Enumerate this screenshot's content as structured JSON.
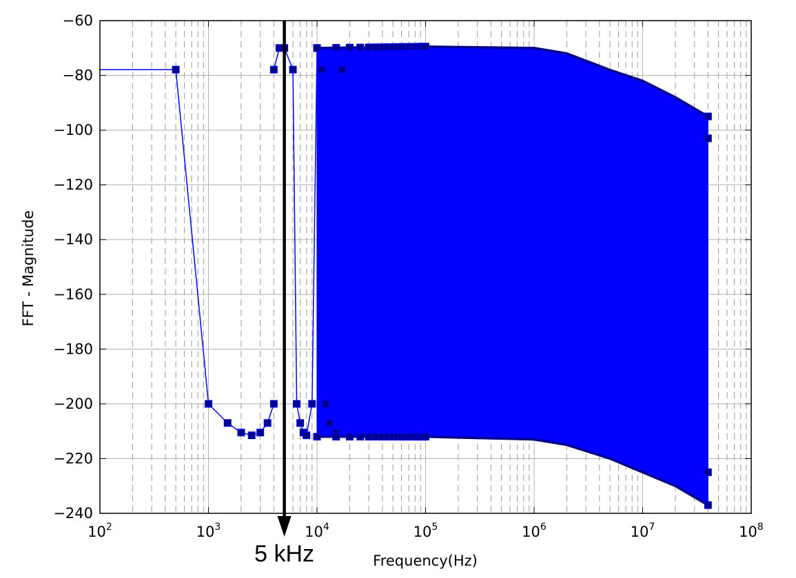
{
  "chart_data": {
    "type": "line",
    "xlabel": "Frequency(Hz)",
    "ylabel": "FFT - Magnitude",
    "x_scale": "log",
    "xlim": [
      100,
      100000000
    ],
    "ylim": [
      -240,
      -60
    ],
    "grid": true,
    "x_tick_labels": [
      {
        "base": "10",
        "exp": "2",
        "value": 100
      },
      {
        "base": "10",
        "exp": "3",
        "value": 1000
      },
      {
        "base": "10",
        "exp": "4",
        "value": 10000
      },
      {
        "base": "10",
        "exp": "5",
        "value": 100000
      },
      {
        "base": "10",
        "exp": "6",
        "value": 1000000
      },
      {
        "base": "10",
        "exp": "7",
        "value": 10000000
      },
      {
        "base": "10",
        "exp": "8",
        "value": 100000000
      }
    ],
    "y_ticks": [
      -60,
      -80,
      -100,
      -120,
      -140,
      -160,
      -180,
      -200,
      -220,
      -240
    ],
    "y_tick_labels": [
      "−60",
      "−80",
      "−100",
      "−120",
      "−140",
      "−160",
      "−180",
      "−200",
      "−220",
      "−240"
    ],
    "series": [
      {
        "color": "#0000ff",
        "marker": "square",
        "marker_color": "#00008b",
        "start_points": {
          "x": [
            100,
            500,
            1000,
            1500,
            2000,
            2500,
            3000,
            3500,
            4000
          ],
          "y": [
            -77.9,
            -77.9,
            -200,
            -207,
            -210.5,
            -211.5,
            -210.5,
            -207,
            -200
          ]
        },
        "tones": {
          "x": [
            4000,
            4500,
            5000,
            6000,
            6500,
            7000,
            7500,
            8000,
            9000,
            10000,
            11000,
            12000,
            13000,
            15000,
            17000,
            20000
          ],
          "y": [
            -77.9,
            -70,
            -70,
            -77.9,
            -200,
            -207,
            -210.5,
            -211.5,
            -200,
            -70,
            -77.9,
            -200,
            -207,
            -210.5,
            -77.9,
            -70
          ]
        },
        "upper_envelope": {
          "x": [
            10000,
            100000,
            1000000,
            2000000,
            5000000,
            10000000,
            20000000,
            40000000
          ],
          "y": [
            -70,
            -69.5,
            -70,
            -72,
            -78,
            -82,
            -88,
            -95
          ]
        },
        "lower_envelope": {
          "x": [
            10000,
            100000,
            1000000,
            2000000,
            5000000,
            10000000,
            20000000,
            40000000
          ],
          "y": [
            -212,
            -212,
            -213,
            -215,
            -220,
            -225,
            -230,
            -237
          ]
        }
      }
    ],
    "annotations": [
      {
        "type": "arrow",
        "x": 5000,
        "direction": "down",
        "text": "5 kHz",
        "color": "#000000"
      }
    ]
  }
}
